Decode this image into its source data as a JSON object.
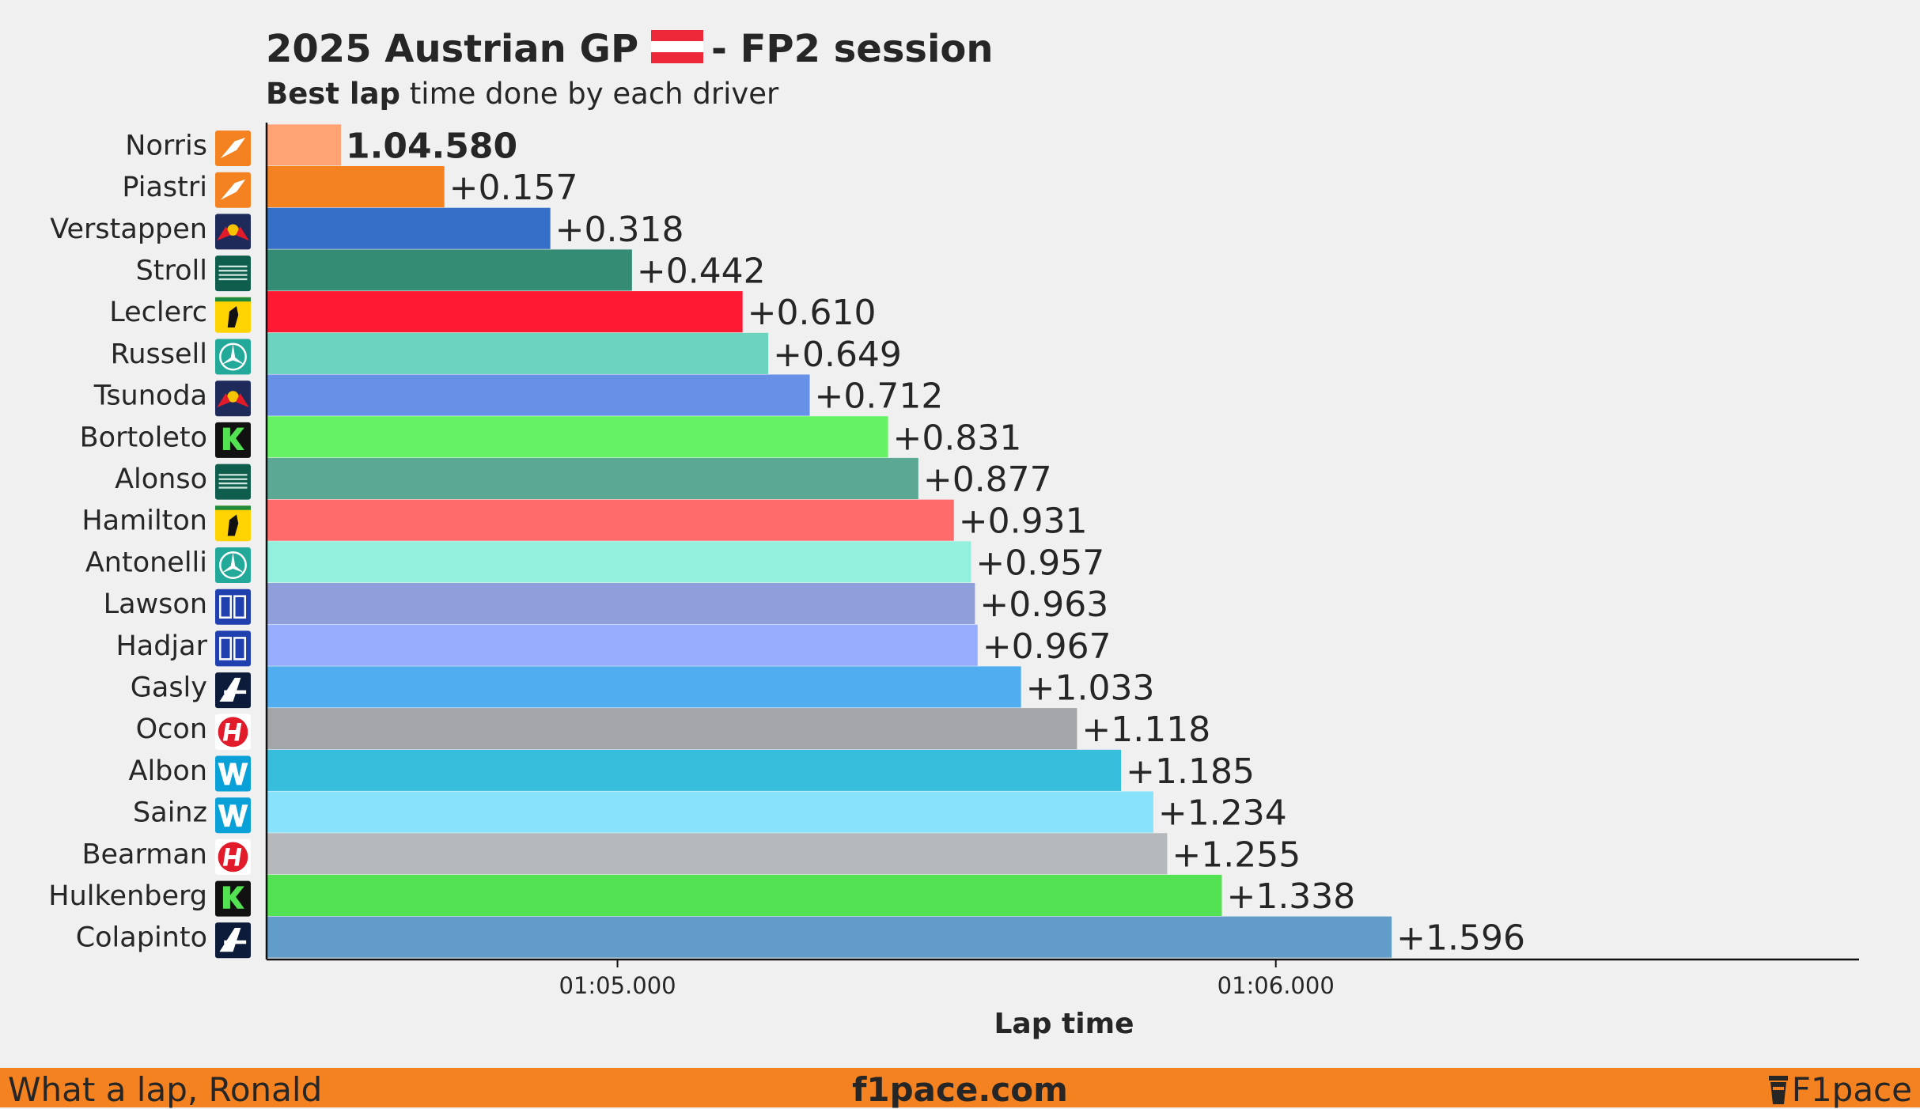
{
  "chart_data": {
    "type": "bar",
    "orientation": "horizontal",
    "title": "2025 Austrian GP",
    "title_suffix": "- FP2 session",
    "subtitle_bold": "Best lap",
    "subtitle_rest": "time done by each driver",
    "xlabel": "Lap time",
    "ylabel": "",
    "xlim_seconds": [
      64.467,
      66.886
    ],
    "x_ticks": [
      {
        "value": 65.0,
        "label": "01:05.000"
      },
      {
        "value": 66.0,
        "label": "01:06.000"
      }
    ],
    "grid": false,
    "legend": "none",
    "fastest_label": "1.04.580",
    "categories": [
      "Norris",
      "Piastri",
      "Verstappen",
      "Stroll",
      "Leclerc",
      "Russell",
      "Tsunoda",
      "Bortoleto",
      "Alonso",
      "Hamilton",
      "Antonelli",
      "Lawson",
      "Hadjar",
      "Gasly",
      "Ocon",
      "Albon",
      "Sainz",
      "Bearman",
      "Hulkenberg",
      "Colapinto"
    ],
    "values": [
      64.58,
      64.737,
      64.898,
      65.022,
      65.19,
      65.229,
      65.292,
      65.411,
      65.457,
      65.511,
      65.537,
      65.543,
      65.547,
      65.613,
      65.698,
      65.765,
      65.814,
      65.835,
      65.918,
      66.176
    ],
    "gap_labels": [
      "1.04.580",
      "+0.157",
      "+0.318",
      "+0.442",
      "+0.610",
      "+0.649",
      "+0.712",
      "+0.831",
      "+0.877",
      "+0.931",
      "+0.957",
      "+0.963",
      "+0.967",
      "+1.033",
      "+1.118",
      "+1.185",
      "+1.234",
      "+1.255",
      "+1.338",
      "+1.596"
    ],
    "bar_colors": [
      "#ffa375",
      "#f58220",
      "#366fc7",
      "#358c75",
      "#ff1932",
      "#6cd3bf",
      "#6691e7",
      "#65f364",
      "#5ba894",
      "#ff6b6b",
      "#92f0dc",
      "#8f9fd9",
      "#95adfc",
      "#50aef0",
      "#a3a5a8",
      "#37bedd",
      "#87e2fc",
      "#b6b9bb",
      "#52e252",
      "#629dca"
    ],
    "teams": [
      "mclaren",
      "mclaren",
      "red-bull",
      "aston-martin",
      "ferrari",
      "mercedes",
      "red-bull",
      "sauber",
      "aston-martin",
      "ferrari",
      "mercedes",
      "racing-bulls",
      "racing-bulls",
      "alpine",
      "haas",
      "williams",
      "williams",
      "haas",
      "sauber",
      "alpine"
    ]
  },
  "footer": {
    "left": "What a lap, Ronald",
    "center": "f1pace.com",
    "right": "F1pace"
  },
  "colors": {
    "background": "#f0f0f0",
    "footer": "#f58220",
    "text": "#262626"
  }
}
